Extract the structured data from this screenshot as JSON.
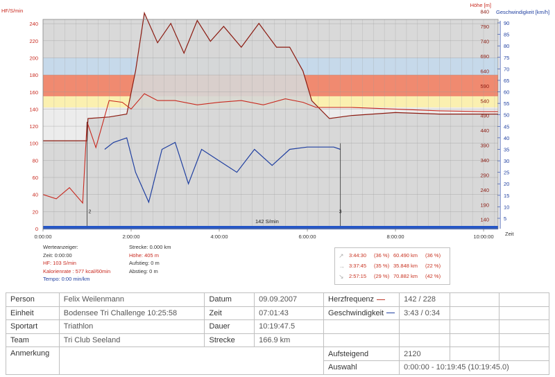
{
  "chart": {
    "left_axis_title": "HF/S/min",
    "right_axis1_title": "Höhe [m]",
    "right_axis2_title": "Geschwindigkeit [km/h]",
    "x_axis_title": "Zeit",
    "annotation": "142 S/min",
    "marker_label_a": "2",
    "marker_label_b": "3",
    "colors": {
      "hf": "#c8281e",
      "altitude": "#8b1a10",
      "speed": "#1f3fa0",
      "zone_top": "#d9d9d9",
      "zone_blue": "#c6d9ea",
      "zone_red": "#f08a70",
      "zone_yellow": "#fbf0b0",
      "zone_base": "#ececec",
      "bottom_bar": "#2355c8"
    }
  },
  "chart_data": {
    "type": "line",
    "title": "",
    "xlabel": "Zeit",
    "x_ticks": [
      "0:00:00",
      "2:00:00",
      "4:00:00",
      "6:00:00",
      "8:00:00",
      "10:00:00"
    ],
    "xlim_hours": [
      0,
      10.33
    ],
    "y_left": {
      "label": "HF/S/min",
      "ticks": [
        0,
        20,
        40,
        60,
        80,
        100,
        120,
        140,
        160,
        180,
        200,
        220,
        240
      ],
      "ylim": [
        0,
        245
      ]
    },
    "y_right_altitude": {
      "label": "Höhe [m]",
      "ticks": [
        140,
        190,
        240,
        290,
        340,
        390,
        440,
        490,
        540,
        590,
        640,
        690,
        740,
        790,
        840
      ]
    },
    "y_right_speed": {
      "label": "Geschwindigkeit [km/h]",
      "ticks": [
        5,
        10,
        15,
        20,
        25,
        30,
        35,
        40,
        45,
        50,
        55,
        60,
        65,
        70,
        75,
        80,
        85,
        90
      ]
    },
    "hr_zones": [
      {
        "from": 200,
        "to": 245,
        "color": "#d9d9d9"
      },
      {
        "from": 180,
        "to": 200,
        "color": "#c6d9ea"
      },
      {
        "from": 155,
        "to": 180,
        "color": "#f08a70"
      },
      {
        "from": 142,
        "to": 155,
        "color": "#fbf0b0"
      }
    ],
    "series": [
      {
        "name": "Herzfrequenz",
        "points": [
          [
            0.0,
            40
          ],
          [
            0.3,
            35
          ],
          [
            0.6,
            48
          ],
          [
            0.9,
            30
          ],
          [
            1.0,
            125
          ],
          [
            1.2,
            95
          ],
          [
            1.5,
            150
          ],
          [
            1.8,
            148
          ],
          [
            2.0,
            140
          ],
          [
            2.3,
            158
          ],
          [
            2.6,
            150
          ],
          [
            3.0,
            150
          ],
          [
            3.5,
            145
          ],
          [
            4.0,
            148
          ],
          [
            4.5,
            150
          ],
          [
            5.0,
            145
          ],
          [
            5.5,
            152
          ],
          [
            5.9,
            148
          ],
          [
            6.2,
            142
          ],
          [
            6.6,
            142
          ],
          [
            7.0,
            142
          ],
          [
            8.0,
            140
          ],
          [
            9.0,
            138
          ],
          [
            10.0,
            137
          ],
          [
            10.33,
            137
          ]
        ]
      },
      {
        "name": "Höhe",
        "points": [
          [
            0.0,
            405
          ],
          [
            1.0,
            405
          ],
          [
            1.02,
            480
          ],
          [
            1.5,
            485
          ],
          [
            1.9,
            495
          ],
          [
            2.1,
            640
          ],
          [
            2.3,
            835
          ],
          [
            2.6,
            735
          ],
          [
            2.9,
            800
          ],
          [
            3.2,
            700
          ],
          [
            3.5,
            810
          ],
          [
            3.8,
            740
          ],
          [
            4.1,
            790
          ],
          [
            4.5,
            720
          ],
          [
            4.9,
            800
          ],
          [
            5.3,
            720
          ],
          [
            5.6,
            720
          ],
          [
            5.9,
            640
          ],
          [
            6.1,
            540
          ],
          [
            6.5,
            480
          ],
          [
            7.0,
            490
          ],
          [
            8.0,
            500
          ],
          [
            9.0,
            495
          ],
          [
            10.0,
            495
          ],
          [
            10.33,
            495
          ]
        ]
      },
      {
        "name": "Geschwindigkeit",
        "points": [
          [
            1.4,
            35
          ],
          [
            1.6,
            38
          ],
          [
            1.9,
            40
          ],
          [
            2.1,
            25
          ],
          [
            2.4,
            12
          ],
          [
            2.7,
            35
          ],
          [
            3.0,
            38
          ],
          [
            3.3,
            20
          ],
          [
            3.6,
            35
          ],
          [
            4.0,
            30
          ],
          [
            4.4,
            25
          ],
          [
            4.8,
            35
          ],
          [
            5.2,
            28
          ],
          [
            5.6,
            35
          ],
          [
            6.0,
            36
          ],
          [
            6.3,
            36
          ],
          [
            6.6,
            36
          ],
          [
            6.75,
            35
          ]
        ]
      }
    ]
  },
  "info_left": {
    "title": "Werteanzeiger:",
    "zeit": "Zeit: 0:00:00",
    "hf": "HF: 103 S/min",
    "kalorien": "Kalorienrate : 577 kcal/60min",
    "tempo": "Tempo: 0:00 min/km"
  },
  "info_mid": {
    "strecke": "Strecke: 0.000 km",
    "hoehe": "Höhe: 405 m",
    "aufstieg": "Aufstieg: 0 m",
    "abstieg": "Abstieg: 0 m"
  },
  "summary": [
    {
      "icon": "↗",
      "time": "3:44:30",
      "pct_time": "(36 %)",
      "dist": "60.490 km",
      "pct_dist": "(36 %)"
    },
    {
      "icon": "→",
      "time": "3:37:45",
      "pct_time": "(35 %)",
      "dist": "35.848 km",
      "pct_dist": "(22 %)"
    },
    {
      "icon": "↘",
      "time": "2:57:15",
      "pct_time": "(29 %)",
      "dist": "70.882 km",
      "pct_dist": "(42 %)"
    }
  ],
  "table": {
    "person_label": "Person",
    "person_value": "Felix Weilenmann",
    "datum_label": "Datum",
    "datum_value": "09.09.2007",
    "hf_label": "Herzfrequenz",
    "hf_value": "142 / 228",
    "einheit_label": "Einheit",
    "einheit_value": "Bodensee Tri Challenge 10:25:58",
    "zeit_label": "Zeit",
    "zeit_value": "07:01:43",
    "speed_label": "Geschwindigkeit",
    "speed_value": "3:43 / 0:34",
    "sportart_label": "Sportart",
    "sportart_value": "Triathlon",
    "dauer_label": "Dauer",
    "dauer_value": "10:19:47.5",
    "team_label": "Team",
    "team_value": "Tri Club Seeland",
    "strecke_label": "Strecke",
    "strecke_value": "166.9 km",
    "anmerkung_label": "Anmerkung",
    "aufsteigend_label": "Aufsteigend",
    "aufsteigend_value": "2120",
    "auswahl_label": "Auswahl",
    "auswahl_value": "0:00:00 - 10:19:45 (10:19:45.0)"
  }
}
